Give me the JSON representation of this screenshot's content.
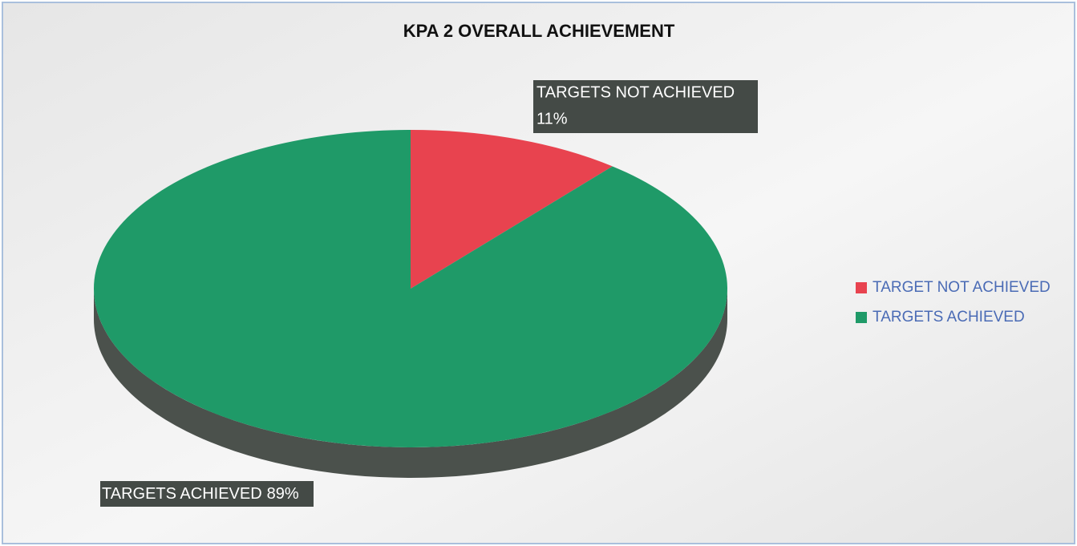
{
  "chart_data": {
    "type": "pie",
    "title": "KPA 2 OVERALL ACHIEVEMENT",
    "categories": [
      "TARGET NOT ACHIEVED",
      "TARGETS ACHIEVED"
    ],
    "label_names": [
      "TARGETS NOT ACHIEVED",
      "TARGETS ACHIEVED"
    ],
    "values": [
      11,
      89
    ],
    "value_labels": [
      "11%",
      "89%"
    ],
    "colors": [
      "#e8434f",
      "#1f9a68"
    ],
    "legend": "right"
  }
}
